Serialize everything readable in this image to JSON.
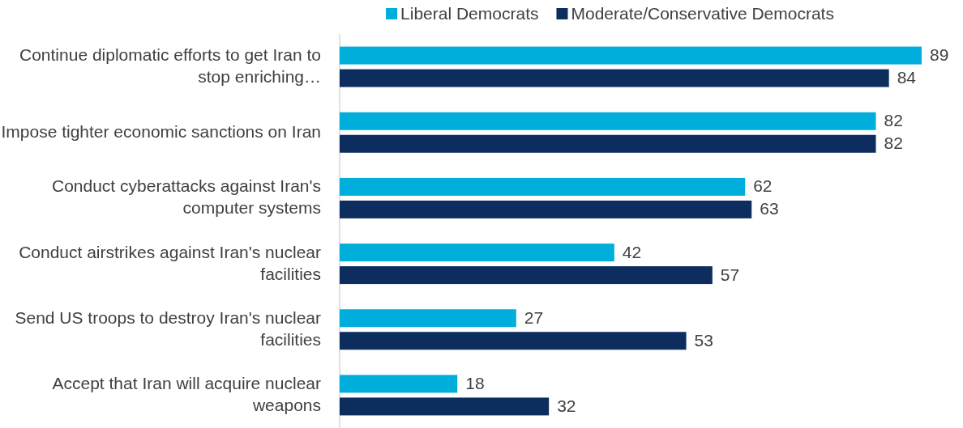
{
  "chart_data": {
    "type": "bar",
    "orientation": "horizontal",
    "legend": "top",
    "data_labels": true,
    "categories": [
      "Continue diplomatic efforts to get Iran to stop enriching…",
      "Impose tighter economic sanctions on Iran",
      "Conduct cyberattacks against Iran's computer systems",
      "Conduct airstrikes against Iran's nuclear facilities",
      "Send US troops to destroy Iran's nuclear facilities",
      "Accept that Iran will acquire nuclear weapons"
    ],
    "series": [
      {
        "name": "Liberal Democrats",
        "color": "#00aedb",
        "values": [
          89,
          82,
          62,
          42,
          27,
          18
        ]
      },
      {
        "name": "Moderate/Conservative Democrats",
        "color": "#0c2d5e",
        "values": [
          84,
          82,
          63,
          57,
          53,
          32
        ]
      }
    ]
  }
}
